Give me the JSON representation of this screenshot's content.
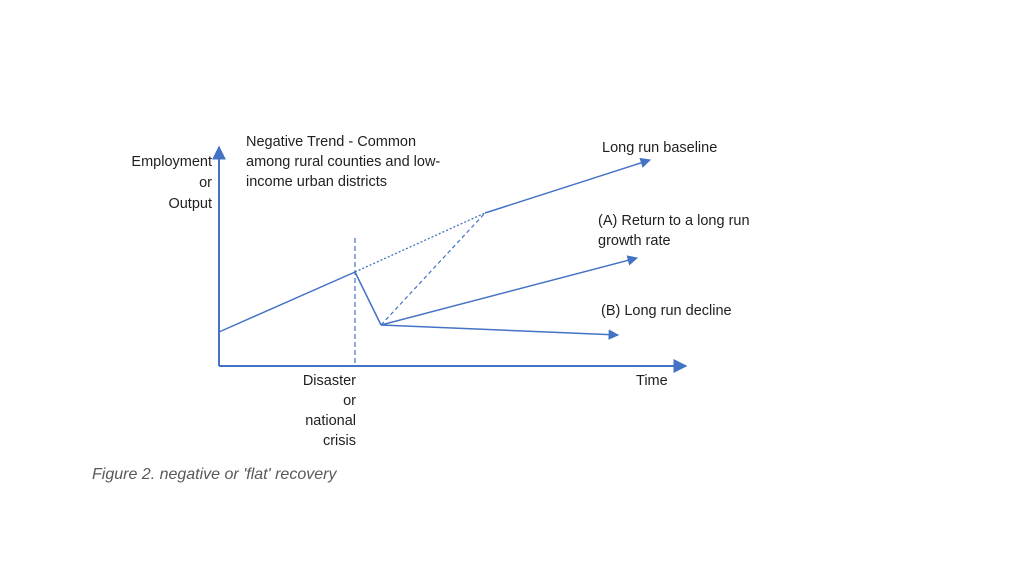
{
  "diagram": {
    "colors": {
      "line": "#4472c4",
      "text": "#1f1f1f",
      "caption": "#595959"
    },
    "y_axis_label": [
      "Employment",
      "or",
      "Output"
    ],
    "x_axis_label": "Time",
    "event_label": [
      "Disaster",
      "or",
      "national",
      "crisis"
    ],
    "header_note": [
      "Negative Trend - Common",
      "among rural counties and low-",
      "income urban districts"
    ],
    "series": {
      "baseline": "Long run baseline",
      "return_label": [
        "(A) Return to a long run",
        "growth rate"
      ],
      "decline": "(B)  Long run decline"
    },
    "caption": "Figure 2. negative or 'flat' recovery"
  }
}
